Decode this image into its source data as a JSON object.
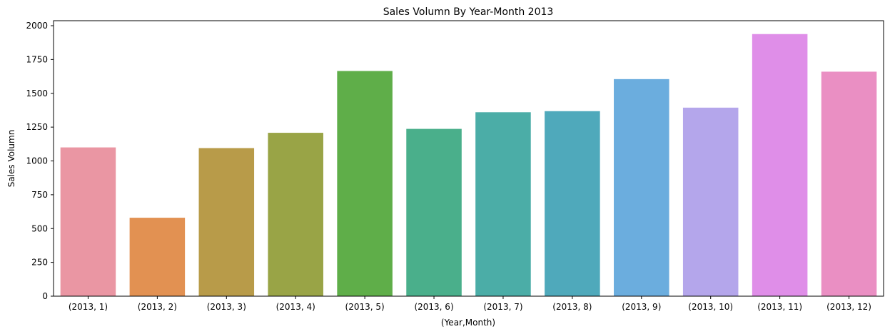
{
  "chart_data": {
    "type": "bar",
    "title": "Sales Volumn By Year-Month 2013",
    "xlabel": "(Year,Month)",
    "ylabel": "Sales Volumn",
    "ylim": [
      0,
      2000
    ],
    "yticks": [
      0,
      250,
      500,
      750,
      1000,
      1250,
      1500,
      1750,
      2000
    ],
    "grid": false,
    "legend": "none",
    "categories": [
      "(2013, 1)",
      "(2013, 2)",
      "(2013, 3)",
      "(2013, 4)",
      "(2013, 5)",
      "(2013, 6)",
      "(2013, 7)",
      "(2013, 8)",
      "(2013, 9)",
      "(2013, 10)",
      "(2013, 11)",
      "(2013, 12)"
    ],
    "values": [
      1100,
      580,
      1095,
      1208,
      1665,
      1237,
      1360,
      1368,
      1605,
      1394,
      1938,
      1660
    ],
    "colors": [
      "#ea96a3",
      "#e29152",
      "#b89b49",
      "#99a446",
      "#5fae49",
      "#4aaf8b",
      "#4bada7",
      "#4fa9bb",
      "#6badde",
      "#b4a6eb",
      "#df8ee8",
      "#ea8fc3"
    ]
  }
}
